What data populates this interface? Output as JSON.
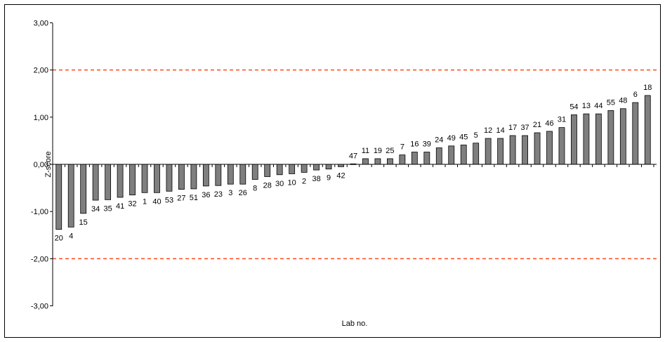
{
  "chart_data": {
    "type": "bar",
    "xlabel": "Lab no.",
    "ylabel": "Z-score",
    "ylim": [
      -3,
      3
    ],
    "yticks": [
      "3,00",
      "2,00",
      "1,00",
      "0,00",
      "-1,00",
      "-2,00",
      "-3,00"
    ],
    "reference_lines": [
      2,
      -2
    ],
    "grid": false,
    "legend": "none",
    "categories": [
      "20",
      "4",
      "15",
      "34",
      "35",
      "41",
      "32",
      "1",
      "40",
      "53",
      "27",
      "51",
      "36",
      "23",
      "3",
      "26",
      "8",
      "28",
      "30",
      "10",
      "2",
      "38",
      "9",
      "42",
      "47",
      "11",
      "19",
      "25",
      "7",
      "16",
      "39",
      "24",
      "49",
      "45",
      "5",
      "12",
      "14",
      "17",
      "37",
      "21",
      "46",
      "31",
      "54",
      "13",
      "44",
      "55",
      "48",
      "6",
      "18"
    ],
    "values": [
      -1.38,
      -1.33,
      -1.04,
      -0.76,
      -0.75,
      -0.7,
      -0.65,
      -0.6,
      -0.6,
      -0.57,
      -0.53,
      -0.52,
      -0.46,
      -0.45,
      -0.42,
      -0.42,
      -0.32,
      -0.26,
      -0.22,
      -0.2,
      -0.17,
      -0.12,
      -0.1,
      -0.05,
      0.01,
      0.12,
      0.12,
      0.12,
      0.2,
      0.26,
      0.26,
      0.35,
      0.39,
      0.41,
      0.45,
      0.55,
      0.55,
      0.61,
      0.61,
      0.67,
      0.7,
      0.78,
      1.05,
      1.07,
      1.07,
      1.14,
      1.18,
      1.31,
      1.46
    ],
    "colors": {
      "bar_fill": "#7f7f7f",
      "bar_stroke": "#000000",
      "reference_line": "#ff4a1c",
      "axis": "#000000"
    }
  }
}
